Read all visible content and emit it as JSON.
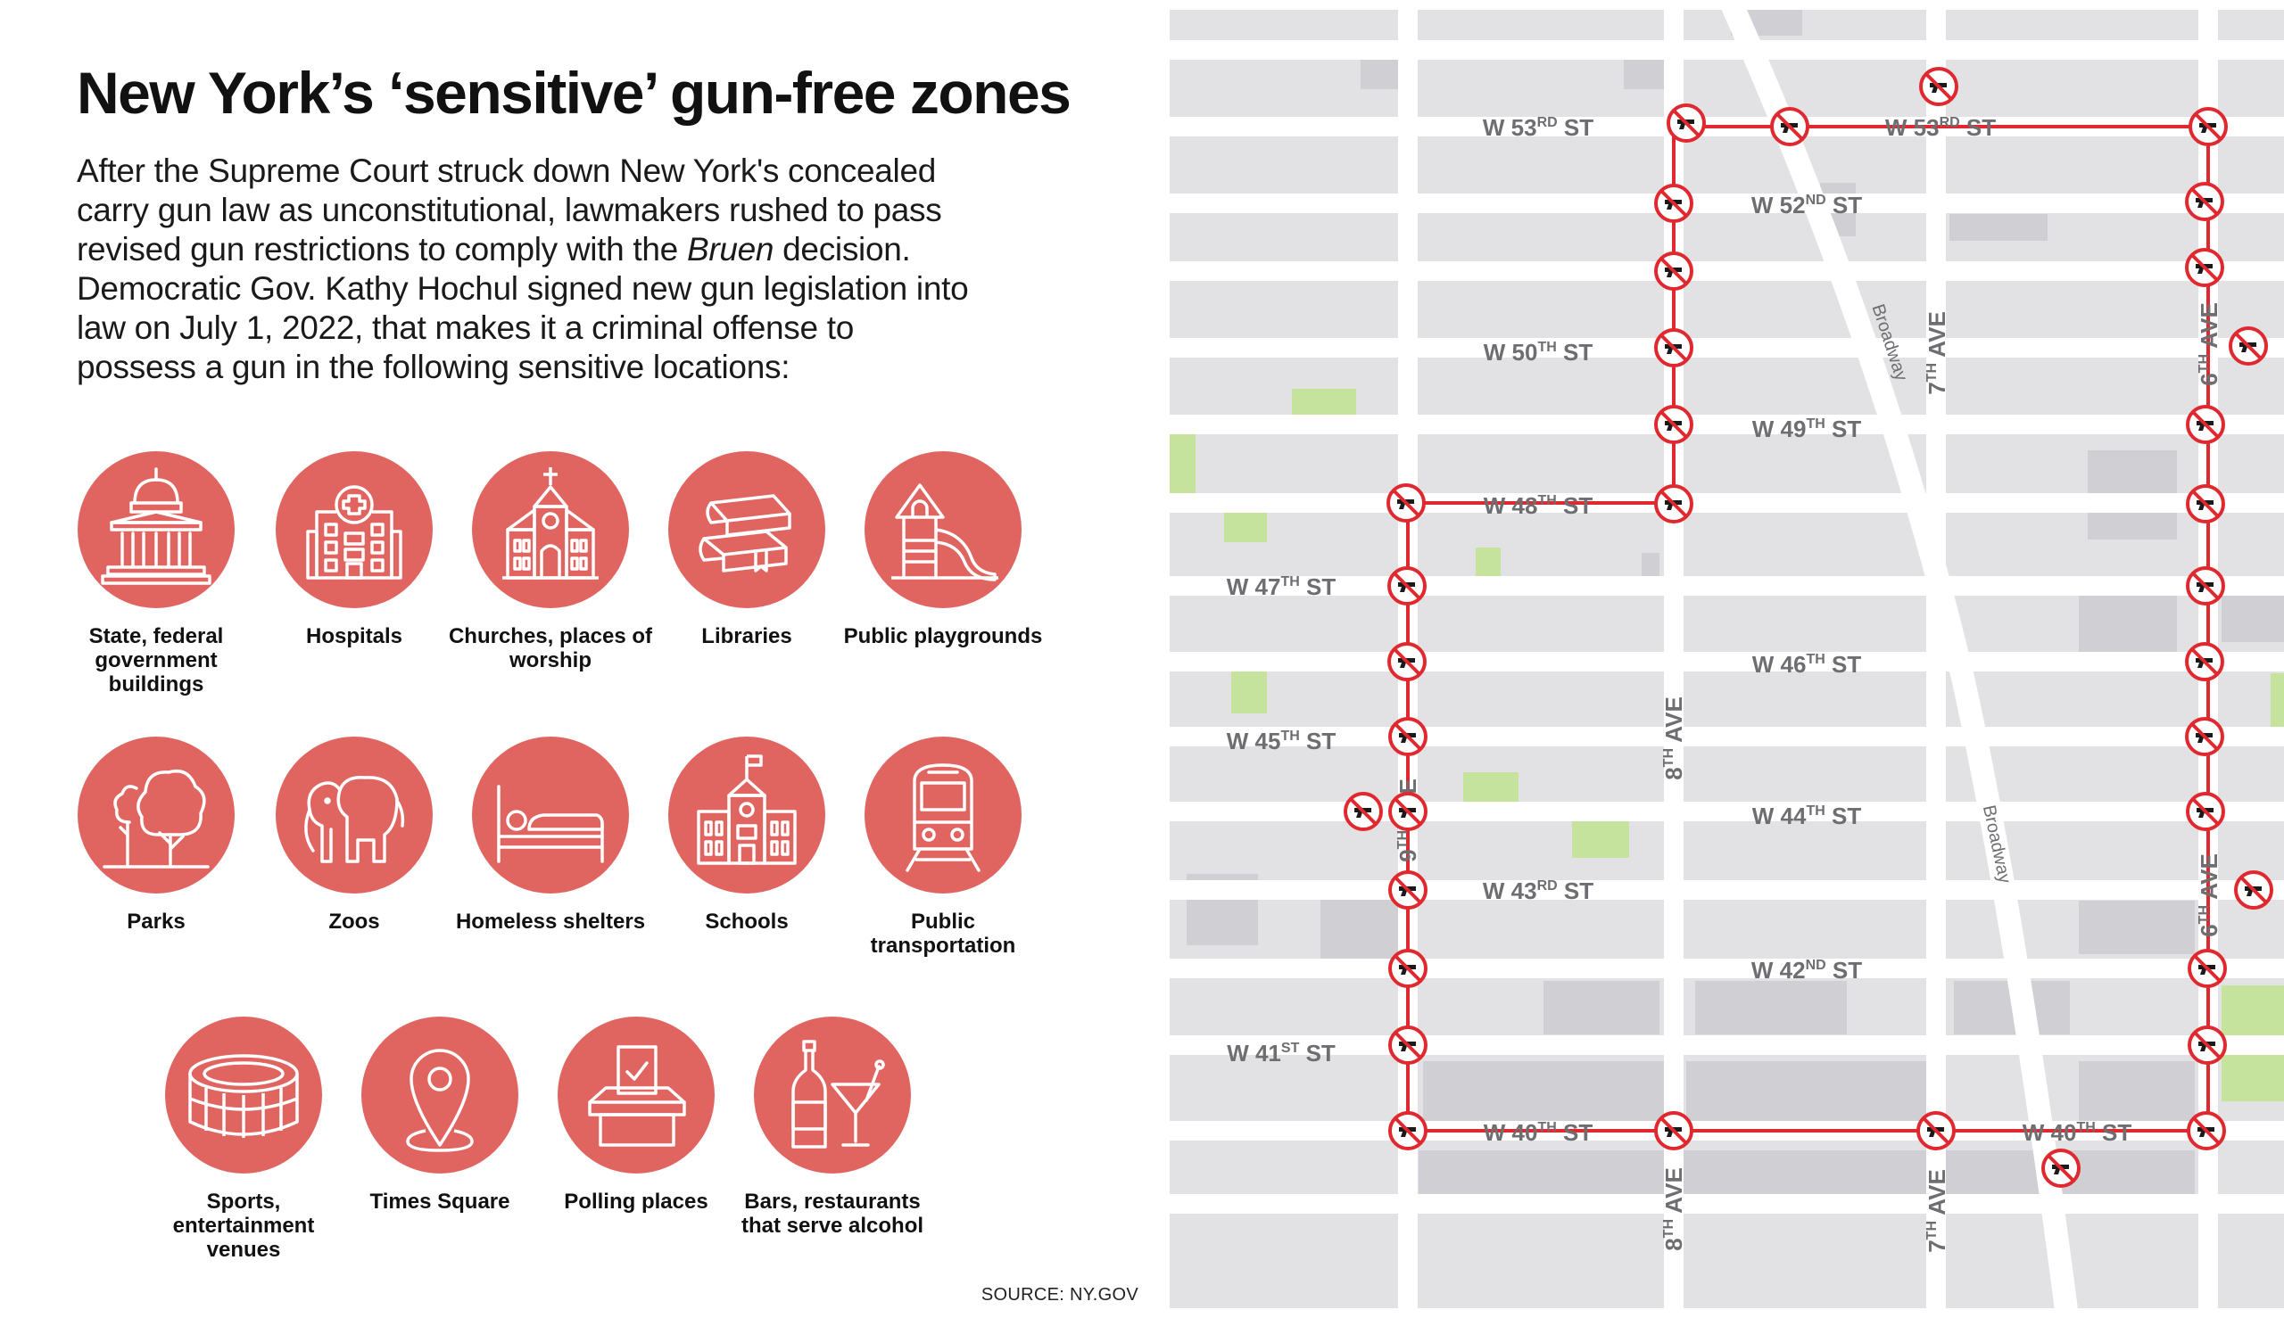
{
  "header": {
    "title": "New York’s ‘sensitive’ gun-free zones",
    "intro_1": "After the Supreme Court struck down New York's concealed carry gun law as unconstitutional, lawmakers rushed to pass revised gun restrictions to comply with the ",
    "intro_em": "Bruen",
    "intro_2": " decision. Democratic Gov. Kathy Hochul signed new gun legislation into law on July 1, 2022, that makes it a criminal offense to possess a gun in the following sensitive locations:"
  },
  "categories": [
    {
      "label": "State, federal government buildings",
      "icon": "government-building-icon"
    },
    {
      "label": "Hospitals",
      "icon": "hospital-icon"
    },
    {
      "label": "Churches, places of worship",
      "icon": "church-icon"
    },
    {
      "label": "Libraries",
      "icon": "books-icon"
    },
    {
      "label": "Public playgrounds",
      "icon": "playground-icon"
    },
    {
      "label": "Parks",
      "icon": "trees-icon"
    },
    {
      "label": "Zoos",
      "icon": "elephant-icon"
    },
    {
      "label": "Homeless shelters",
      "icon": "bed-icon"
    },
    {
      "label": "Schools",
      "icon": "school-icon"
    },
    {
      "label": "Public transportation",
      "icon": "train-icon"
    },
    {
      "label": "Sports, entertainment venues",
      "icon": "stadium-icon"
    },
    {
      "label": "Times Square",
      "icon": "location-pin-icon"
    },
    {
      "label": "Polling places",
      "icon": "ballot-box-icon"
    },
    {
      "label": "Bars, restaurants that serve alcohol",
      "icon": "bottle-glass-icon"
    }
  ],
  "source": "SOURCE: NY.GOV",
  "map": {
    "streets": [
      {
        "id": "w53",
        "num": "W 53",
        "sup": "RD",
        "suffix": " ST"
      },
      {
        "id": "w52",
        "num": "W 52",
        "sup": "ND",
        "suffix": " ST"
      },
      {
        "id": "w50",
        "num": "W 50",
        "sup": "TH",
        "suffix": " ST"
      },
      {
        "id": "w49",
        "num": "W 49",
        "sup": "TH",
        "suffix": " ST"
      },
      {
        "id": "w48",
        "num": "W 48",
        "sup": "TH",
        "suffix": " ST"
      },
      {
        "id": "w47",
        "num": "W 47",
        "sup": "TH",
        "suffix": " ST"
      },
      {
        "id": "w46",
        "num": "W 46",
        "sup": "TH",
        "suffix": " ST"
      },
      {
        "id": "w45",
        "num": "W 45",
        "sup": "TH",
        "suffix": " ST"
      },
      {
        "id": "w44",
        "num": "W 44",
        "sup": "TH",
        "suffix": " ST"
      },
      {
        "id": "w43",
        "num": "W 43",
        "sup": "RD",
        "suffix": " ST"
      },
      {
        "id": "w42",
        "num": "W 42",
        "sup": "ND",
        "suffix": " ST"
      },
      {
        "id": "w41",
        "num": "W 41",
        "sup": "ST",
        "suffix": " ST"
      },
      {
        "id": "w40",
        "num": "W 40",
        "sup": "TH",
        "suffix": " ST"
      }
    ],
    "avenues": [
      {
        "id": "9th",
        "num": "9",
        "sup": "TH",
        "suffix": " AVE"
      },
      {
        "id": "8th",
        "num": "8",
        "sup": "TH",
        "suffix": " AVE"
      },
      {
        "id": "7th",
        "num": "7",
        "sup": "TH",
        "suffix": " AVE"
      },
      {
        "id": "6th",
        "num": "6",
        "sup": "TH",
        "suffix": " AVE"
      }
    ],
    "broadway": "Broadway",
    "colors": {
      "block": "#e2e2e5",
      "block_dark": "#d0d0d4",
      "road": "#ffffff",
      "park": "#c5e39c",
      "boundary": "#e0292f",
      "accent_circle": "#e0645f"
    },
    "markers": [
      [
        2173,
        97
      ],
      [
        1890,
        138
      ],
      [
        2006,
        142
      ],
      [
        2475,
        142
      ],
      [
        1876,
        228
      ],
      [
        2471,
        226
      ],
      [
        1876,
        304
      ],
      [
        2471,
        300
      ],
      [
        1876,
        390
      ],
      [
        2520,
        388
      ],
      [
        1876,
        476
      ],
      [
        2472,
        476
      ],
      [
        1576,
        564
      ],
      [
        1876,
        565
      ],
      [
        2472,
        565
      ],
      [
        1577,
        657
      ],
      [
        2472,
        657
      ],
      [
        1577,
        742
      ],
      [
        2471,
        742
      ],
      [
        1578,
        826
      ],
      [
        2471,
        826
      ],
      [
        1528,
        910
      ],
      [
        1578,
        910
      ],
      [
        2472,
        910
      ],
      [
        1578,
        998
      ],
      [
        2526,
        998
      ],
      [
        1578,
        1086
      ],
      [
        2474,
        1086
      ],
      [
        1578,
        1172
      ],
      [
        2474,
        1172
      ],
      [
        1578,
        1268
      ],
      [
        1876,
        1268
      ],
      [
        2170,
        1268
      ],
      [
        2473,
        1268
      ],
      [
        2310,
        1310
      ]
    ]
  }
}
